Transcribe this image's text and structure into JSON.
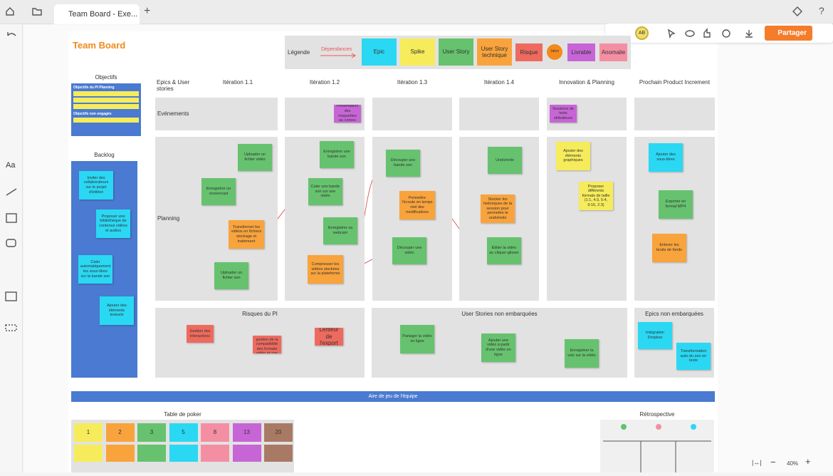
{
  "tab": {
    "title": "Team Board - Exe..."
  },
  "toolbar": {
    "avatar": "AB",
    "share": "Partager",
    "zoom": "40%"
  },
  "board": {
    "title": "Team Board",
    "legend": {
      "label": "Légende",
      "dependencies": "Dépendances",
      "items": [
        {
          "text": "Epic",
          "color": "#2ad8f3"
        },
        {
          "text": "Spike",
          "color": "#f6ec5b"
        },
        {
          "text": "User Story",
          "color": "#66c26e"
        },
        {
          "text": "User Story technique",
          "color": "#f9a33c"
        },
        {
          "text": "Risque",
          "color": "#ee6a5e"
        },
        {
          "text": "Jalon",
          "color": "#f28a1c"
        },
        {
          "text": "Livrable",
          "color": "#c765d6"
        },
        {
          "text": "Anomalie",
          "color": "#f48fa3"
        }
      ]
    },
    "objectives": {
      "title": "Objectifs",
      "committed": "Objectifs du PI Planning",
      "uncommitted": "Objectifs non engagés"
    },
    "backlog": {
      "title": "Backlog"
    },
    "columns": [
      "Epics & User stories",
      "Itération 1.1",
      "Itération 1.2",
      "Itération 1.3",
      "Itération 1.4",
      "Innovation & Planning",
      "Prochain Product Increment"
    ],
    "rows": [
      "Evénements",
      "Planning"
    ],
    "zones": [
      "Risques du PI",
      "User Stories non embarquées",
      "Epics non embarquées"
    ],
    "notes": [
      {
        "text": "Uploader un fichier vidéo",
        "color": "#66c26e"
      },
      {
        "text": "Enregistrer un screencast",
        "color": "#66c26e"
      },
      {
        "text": "Transformer les vidéos en fichiers stockage et traitement",
        "color": "#f9a33c"
      },
      {
        "text": "Uploader un fichier son",
        "color": "#66c26e"
      },
      {
        "text": "Enregistrer une bande son",
        "color": "#66c26e"
      },
      {
        "text": "Caler une bande son sur une vidéo",
        "color": "#66c26e"
      },
      {
        "text": "Enregistrer sa webcam",
        "color": "#66c26e"
      },
      {
        "text": "Compresser les vidéos stockées sur la plateforme",
        "color": "#f9a33c"
      },
      {
        "text": "Présentation des maquettes au comex",
        "color": "#c765d6"
      },
      {
        "text": "Découper une bande son",
        "color": "#66c26e"
      },
      {
        "text": "Permettre l'écoute en temps réel des modifications",
        "color": "#f9a33c"
      },
      {
        "text": "Découper une vidéo",
        "color": "#66c26e"
      },
      {
        "text": "Undo/redo",
        "color": "#66c26e"
      },
      {
        "text": "Stocker les historiques de la session pour permettre le undo/redo",
        "color": "#f9a33c"
      },
      {
        "text": "Éditer la vidéo au cliquer-glisser",
        "color": "#66c26e"
      },
      {
        "text": "Sessions de tests utilisateurs",
        "color": "#c765d6"
      },
      {
        "text": "Ajouter des éléments graphiques",
        "color": "#f6ec5b"
      },
      {
        "text": "Proposer différents formats de taille (1:1, 4:3, 5:4, 9:16, 2:3)",
        "color": "#f6ec5b"
      },
      {
        "text": "Ajouter des sous-titres",
        "color": "#2ad8f3"
      },
      {
        "text": "Exporter en format MP4",
        "color": "#66c26e"
      },
      {
        "text": "Enlever les bruits de fonds",
        "color": "#f9a33c"
      },
      {
        "text": "Gestion des interactions",
        "color": "#ee6a5e"
      },
      {
        "text": "Mauvaise gestion de la compatibilité des formats vidéo et son",
        "color": "#ee6a5e"
      },
      {
        "text": "Lenteur de l'export",
        "color": "#ee6a5e"
      },
      {
        "text": "Partager la vidéo en ligne",
        "color": "#66c26e"
      },
      {
        "text": "Ajouter une vidéo à partir d'une vidéo en ligne",
        "color": "#66c26e"
      },
      {
        "text": "Enregistrer la voix sur la vidéo",
        "color": "#66c26e"
      },
      {
        "text": "Intégration Dropbox",
        "color": "#2ad8f3"
      },
      {
        "text": "Transformation auto du son en texte",
        "color": "#2ad8f3"
      },
      {
        "text": "Inviter des collaborateurs sur le projet d'édition",
        "color": "#2ad8f3"
      },
      {
        "text": "Proposer une bibliothèque de contenus vidéos et audios",
        "color": "#2ad8f3"
      },
      {
        "text": "Caler automatiquement les sous-titres sur la bande son",
        "color": "#2ad8f3"
      },
      {
        "text": "Ajouter des éléments textuels",
        "color": "#2ad8f3"
      }
    ],
    "banner": "Aire de jeu de l'équipe",
    "poker": {
      "title": "Table de poker",
      "cards": [
        {
          "text": "1",
          "color": "#f6ec5b"
        },
        {
          "text": "2",
          "color": "#f9a33c"
        },
        {
          "text": "3",
          "color": "#66c26e"
        },
        {
          "text": "5",
          "color": "#2ad8f3"
        },
        {
          "text": "8",
          "color": "#f48fa3"
        },
        {
          "text": "13",
          "color": "#c765d6"
        },
        {
          "text": "20",
          "color": "#a87a66"
        }
      ]
    },
    "retro": {
      "title": "Rétrospective"
    }
  }
}
